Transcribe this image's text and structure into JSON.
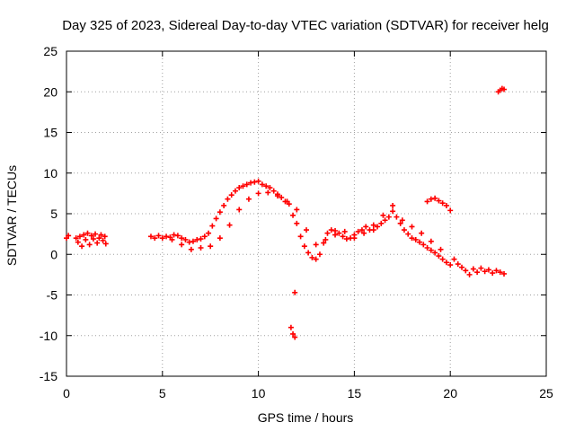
{
  "chart_data": {
    "type": "scatter",
    "title": "Day 325 of 2023, Sidereal Day-to-day VTEC variation (SDTVAR) for receiver helg",
    "xlabel": "GPS time / hours",
    "ylabel": "SDTVAR / TECUs",
    "xlim": [
      0,
      25
    ],
    "ylim": [
      -15,
      25
    ],
    "x_ticks": [
      0,
      5,
      10,
      15,
      20,
      25
    ],
    "y_ticks": [
      -15,
      -10,
      -5,
      0,
      5,
      10,
      15,
      20,
      25
    ],
    "x_tick_labels": [
      "0",
      "5",
      "10",
      "15",
      "20",
      "25"
    ],
    "y_tick_labels": [
      "-15",
      "-10",
      "-5",
      "0",
      "5",
      "10",
      "15",
      "20",
      "25"
    ],
    "grid": true,
    "marker": "plus",
    "color": "#ff0000",
    "series": [
      {
        "name": "SDTVAR",
        "x": [
          0.0,
          0.1,
          0.5,
          0.6,
          0.7,
          0.8,
          0.9,
          1.0,
          1.1,
          1.2,
          1.3,
          1.4,
          1.5,
          1.6,
          1.7,
          1.8,
          1.9,
          2.0,
          2.05,
          4.4,
          4.6,
          4.8,
          5.0,
          5.2,
          5.4,
          5.6,
          5.8,
          6.0,
          6.2,
          6.4,
          6.6,
          6.8,
          7.0,
          7.2,
          7.4,
          7.6,
          7.8,
          8.0,
          8.2,
          8.4,
          8.6,
          8.8,
          9.0,
          9.2,
          9.4,
          9.6,
          9.8,
          10.0,
          10.2,
          10.4,
          10.6,
          10.8,
          11.0,
          11.2,
          11.4,
          11.6,
          11.8,
          12.0,
          12.2,
          12.4,
          12.6,
          12.8,
          13.0,
          13.2,
          13.4,
          13.6,
          13.8,
          14.0,
          14.2,
          14.4,
          14.6,
          14.8,
          15.0,
          15.2,
          15.4,
          15.6,
          15.8,
          16.0,
          16.2,
          16.4,
          16.6,
          16.8,
          17.0,
          17.2,
          17.4,
          17.6,
          17.8,
          18.0,
          18.2,
          18.4,
          18.6,
          18.8,
          19.0,
          19.2,
          19.4,
          19.6,
          19.8,
          20.0,
          5.5,
          6.0,
          6.5,
          7.0,
          7.5,
          8.0,
          8.5,
          9.0,
          9.5,
          10.0,
          10.5,
          11.0,
          11.5,
          12.0,
          12.5,
          13.0,
          13.5,
          14.0,
          14.5,
          15.0,
          15.5,
          16.0,
          16.5,
          17.0,
          17.5,
          18.0,
          18.5,
          19.0,
          19.5,
          18.8,
          19.0,
          19.2,
          19.4,
          19.6,
          19.8,
          20.0,
          20.2,
          20.4,
          20.6,
          20.8,
          21.0,
          21.2,
          21.4,
          21.6,
          21.8,
          22.0,
          22.2,
          22.4,
          22.6,
          22.8,
          22.5,
          22.6,
          22.7,
          22.8,
          11.9,
          11.7,
          11.8,
          11.9
        ],
        "y": [
          2.0,
          2.3,
          2.0,
          1.5,
          2.2,
          1.0,
          2.4,
          1.8,
          2.6,
          1.2,
          2.3,
          1.9,
          2.5,
          1.4,
          2.0,
          2.4,
          1.7,
          2.2,
          1.3,
          2.2,
          2.0,
          2.3,
          2.0,
          2.2,
          2.1,
          2.4,
          2.3,
          2.0,
          1.8,
          1.5,
          1.6,
          1.8,
          1.9,
          2.2,
          2.6,
          3.5,
          4.4,
          5.2,
          6.0,
          6.8,
          7.3,
          7.8,
          8.2,
          8.4,
          8.6,
          8.8,
          8.9,
          9.0,
          8.6,
          8.4,
          8.2,
          7.8,
          7.4,
          7.0,
          6.5,
          6.2,
          4.8,
          3.8,
          2.2,
          1.0,
          0.2,
          -0.4,
          -0.6,
          0.0,
          1.4,
          2.6,
          3.0,
          2.9,
          2.6,
          2.2,
          1.9,
          2.0,
          2.4,
          2.8,
          3.0,
          3.4,
          3.0,
          3.0,
          3.4,
          3.8,
          4.2,
          4.6,
          5.3,
          4.6,
          3.8,
          3.0,
          2.5,
          2.0,
          1.8,
          1.5,
          1.2,
          0.8,
          0.5,
          0.2,
          -0.2,
          -0.6,
          -1.0,
          -1.3,
          1.8,
          1.2,
          0.6,
          0.8,
          1.0,
          2.0,
          3.6,
          5.5,
          6.8,
          7.5,
          7.6,
          7.2,
          6.5,
          5.5,
          3.0,
          1.2,
          1.8,
          2.4,
          2.8,
          2.0,
          2.6,
          3.6,
          4.8,
          6.0,
          4.2,
          3.4,
          2.6,
          1.6,
          0.6,
          6.5,
          6.8,
          6.9,
          6.6,
          6.3,
          6.0,
          5.4,
          -0.6,
          -1.2,
          -1.6,
          -2.0,
          -2.5,
          -1.8,
          -2.2,
          -1.7,
          -2.1,
          -1.9,
          -2.3,
          -2.0,
          -2.2,
          -2.4,
          20.0,
          20.2,
          20.4,
          20.3,
          -4.7,
          -9.0,
          -9.8,
          -10.2
        ]
      }
    ]
  }
}
